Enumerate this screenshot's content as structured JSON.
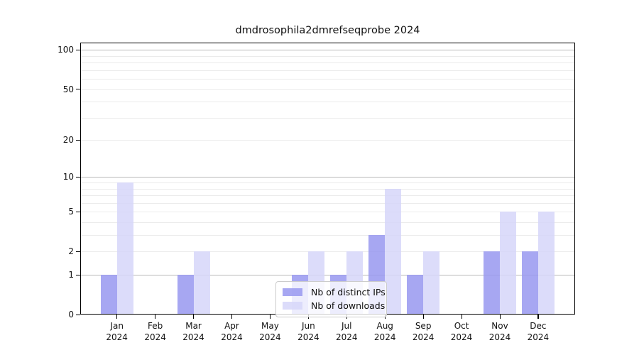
{
  "title": "dmdrosophila2dmrefseqprobe 2024",
  "legend": {
    "items": [
      {
        "label": "Nb of distinct IPs",
        "color": "#9898f0"
      },
      {
        "label": "Nb of downloads",
        "color": "#d6d6f9"
      }
    ]
  },
  "axes": {
    "y_tick_labels": [
      "0",
      "1",
      "2",
      "5",
      "10",
      "20",
      "50",
      "100"
    ],
    "x_tick_labels": [
      "Jan\n2024",
      "Feb\n2024",
      "Mar\n2024",
      "Apr\n2024",
      "May\n2024",
      "Jun\n2024",
      "Jul\n2024",
      "Aug\n2024",
      "Sep\n2024",
      "Oct\n2024",
      "Nov\n2024",
      "Dec\n2024"
    ]
  },
  "chart_data": {
    "type": "bar",
    "title": "dmdrosophila2dmrefseqprobe 2024",
    "categories": [
      "Jan 2024",
      "Feb 2024",
      "Mar 2024",
      "Apr 2024",
      "May 2024",
      "Jun 2024",
      "Jul 2024",
      "Aug 2024",
      "Sep 2024",
      "Oct 2024",
      "Nov 2024",
      "Dec 2024"
    ],
    "series": [
      {
        "name": "Nb of distinct IPs",
        "color": "#9898f0",
        "values": [
          1,
          0,
          1,
          0,
          0,
          1,
          1,
          3,
          1,
          0,
          2,
          2
        ]
      },
      {
        "name": "Nb of downloads",
        "color": "#d6d6f9",
        "values": [
          9,
          0,
          2,
          0,
          0,
          2,
          2,
          8,
          2,
          0,
          5,
          5
        ]
      }
    ],
    "xlabel": "",
    "ylabel": "",
    "yscale": "log1p",
    "yticks": [
      0,
      1,
      2,
      5,
      10,
      20,
      50,
      100
    ],
    "ylim": [
      0,
      114
    ],
    "grid": {
      "major": [
        1,
        10,
        100
      ],
      "minor": [
        2,
        3,
        4,
        5,
        6,
        7,
        8,
        9,
        20,
        30,
        40,
        50,
        60,
        70,
        80,
        90
      ]
    },
    "legend_position": "bottom-center",
    "colors": {
      "major_grid": "#b8b8b8",
      "minor_grid": "#ebebeb",
      "axis": "#000000",
      "background": "#ffffff"
    }
  }
}
